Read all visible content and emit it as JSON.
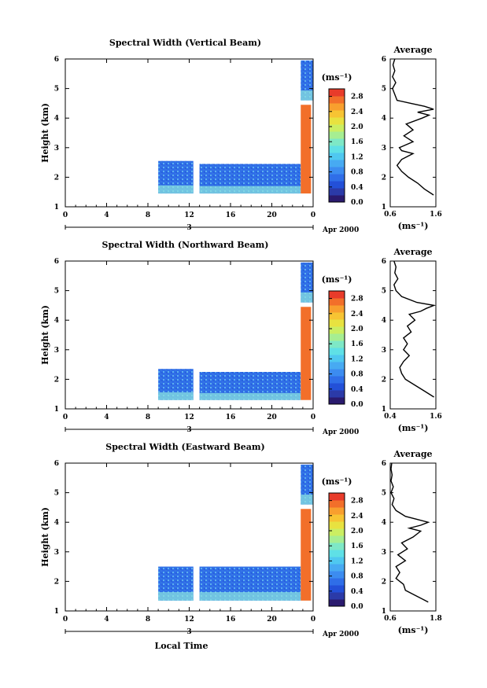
{
  "figure": {
    "xlabel": "Local Time",
    "date_label": "Apr 2000",
    "day_label": "3",
    "unit_label": "(ms⁻¹)",
    "avg_title": "Average",
    "ylabel": "Height (km)"
  },
  "chart_data": [
    {
      "type": "heatmap",
      "title": "Spectral Width (Vertical Beam)",
      "ylabel": "Height (km)",
      "x_ticks": [
        "0",
        "4",
        "8",
        "12",
        "16",
        "20",
        "0"
      ],
      "y_ticks": [
        "1",
        "2",
        "3",
        "4",
        "5",
        "6"
      ],
      "xlim": [
        0,
        24
      ],
      "ylim": [
        1,
        6
      ],
      "colorbar": {
        "ticks": [
          "0.0",
          "0.4",
          "0.8",
          "1.2",
          "1.6",
          "2.0",
          "2.4",
          "2.8"
        ],
        "range": [
          0,
          3.0
        ]
      },
      "regions": [
        {
          "t": [
            9.0,
            12.4
          ],
          "h": [
            1.45,
            2.55
          ],
          "level": 0.6
        },
        {
          "t": [
            13.0,
            22.8
          ],
          "h": [
            1.45,
            2.45
          ],
          "level": 0.6
        },
        {
          "t": [
            22.8,
            24.0
          ],
          "h": [
            4.6,
            5.95
          ],
          "level": 0.7
        },
        {
          "t": [
            22.8,
            23.8
          ],
          "h": [
            1.45,
            4.45
          ],
          "level": 2.7
        }
      ],
      "average": {
        "xlim": [
          0.6,
          1.6
        ],
        "x_ticks": [
          "0.6",
          "1.6"
        ],
        "xlabel": "(ms⁻¹)",
        "heights": [
          1.4,
          1.6,
          1.8,
          2.0,
          2.2,
          2.4,
          2.6,
          2.8,
          2.9,
          3.0,
          3.2,
          3.4,
          3.6,
          3.8,
          4.0,
          4.1,
          4.2,
          4.3,
          4.4,
          4.5,
          4.6,
          4.8,
          5.0,
          5.2,
          5.4,
          5.6,
          5.8,
          6.0
        ],
        "values": [
          1.55,
          1.35,
          1.2,
          1.0,
          0.85,
          0.75,
          0.85,
          1.1,
          0.85,
          0.8,
          1.1,
          0.9,
          1.1,
          0.95,
          1.3,
          1.45,
          1.2,
          1.55,
          1.35,
          1.05,
          0.75,
          0.7,
          0.65,
          0.72,
          0.65,
          0.7,
          0.66,
          0.7
        ]
      }
    },
    {
      "type": "heatmap",
      "title": "Spectral Width (Northward Beam)",
      "ylabel": "Height (km)",
      "x_ticks": [
        "0",
        "4",
        "8",
        "12",
        "16",
        "20",
        "0"
      ],
      "y_ticks": [
        "1",
        "2",
        "3",
        "4",
        "5",
        "6"
      ],
      "xlim": [
        0,
        24
      ],
      "ylim": [
        1,
        6
      ],
      "colorbar": {
        "ticks": [
          "0.0",
          "0.4",
          "0.8",
          "1.2",
          "1.6",
          "2.0",
          "2.4",
          "2.8"
        ],
        "range": [
          0,
          3.0
        ]
      },
      "regions": [
        {
          "t": [
            9.0,
            12.4
          ],
          "h": [
            1.3,
            2.35
          ],
          "level": 0.7
        },
        {
          "t": [
            13.0,
            22.8
          ],
          "h": [
            1.3,
            2.25
          ],
          "level": 0.7
        },
        {
          "t": [
            22.8,
            24.0
          ],
          "h": [
            4.6,
            5.95
          ],
          "level": 0.7
        },
        {
          "t": [
            22.8,
            23.8
          ],
          "h": [
            1.3,
            4.45
          ],
          "level": 2.7
        }
      ],
      "average": {
        "xlim": [
          0.4,
          1.6
        ],
        "x_ticks": [
          "0.4",
          "1.6"
        ],
        "xlabel": "(ms⁻¹)",
        "heights": [
          1.4,
          1.6,
          1.8,
          2.0,
          2.2,
          2.4,
          2.6,
          2.8,
          3.0,
          3.2,
          3.4,
          3.6,
          3.8,
          4.0,
          4.2,
          4.3,
          4.4,
          4.5,
          4.6,
          4.8,
          5.0,
          5.2,
          5.4,
          5.6,
          5.8,
          6.0
        ],
        "values": [
          1.55,
          1.3,
          1.05,
          0.8,
          0.7,
          0.65,
          0.75,
          0.9,
          0.75,
          0.85,
          0.75,
          0.95,
          0.85,
          1.05,
          0.9,
          1.2,
          1.35,
          1.55,
          1.1,
          0.7,
          0.55,
          0.5,
          0.6,
          0.52,
          0.55,
          0.5
        ]
      }
    },
    {
      "type": "heatmap",
      "title": "Spectral Width (Eastward Beam)",
      "ylabel": "Height (km)",
      "x_ticks": [
        "0",
        "4",
        "8",
        "12",
        "16",
        "20",
        "0"
      ],
      "y_ticks": [
        "1",
        "2",
        "3",
        "4",
        "5",
        "6"
      ],
      "xlim": [
        0,
        24
      ],
      "ylim": [
        1,
        6
      ],
      "colorbar": {
        "ticks": [
          "0.0",
          "0.4",
          "0.8",
          "1.2",
          "1.6",
          "2.0",
          "2.4",
          "2.8"
        ],
        "range": [
          0,
          3.0
        ]
      },
      "regions": [
        {
          "t": [
            9.0,
            12.4
          ],
          "h": [
            1.35,
            2.5
          ],
          "level": 0.65
        },
        {
          "t": [
            13.0,
            22.8
          ],
          "h": [
            1.35,
            2.5
          ],
          "level": 0.65
        },
        {
          "t": [
            22.8,
            24.0
          ],
          "h": [
            4.6,
            5.95
          ],
          "level": 0.7
        },
        {
          "t": [
            22.8,
            23.8
          ],
          "h": [
            1.35,
            4.45
          ],
          "level": 2.7
        }
      ],
      "average": {
        "xlim": [
          0.6,
          1.8
        ],
        "x_ticks": [
          "0.6",
          "1.8"
        ],
        "xlabel": "(ms⁻¹)",
        "heights": [
          1.3,
          1.5,
          1.7,
          1.9,
          2.1,
          2.3,
          2.5,
          2.7,
          2.9,
          3.1,
          3.3,
          3.5,
          3.7,
          3.8,
          3.9,
          4.0,
          4.1,
          4.2,
          4.4,
          4.6,
          4.8,
          5.0,
          5.2,
          5.4,
          5.6,
          5.8,
          6.0
        ],
        "values": [
          1.6,
          1.3,
          1.0,
          0.95,
          0.75,
          0.85,
          0.75,
          1.0,
          0.8,
          1.05,
          0.9,
          1.2,
          1.4,
          1.1,
          1.4,
          1.6,
          1.3,
          1.0,
          0.75,
          0.65,
          0.7,
          0.62,
          0.68,
          0.62,
          0.65,
          0.62,
          0.64
        ]
      }
    }
  ]
}
